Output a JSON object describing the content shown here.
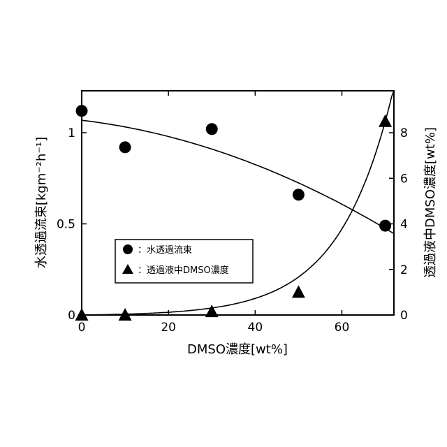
{
  "chart_data": {
    "type": "scatter",
    "title": "",
    "xlabel": "DMSO濃度[wt%]",
    "ylabel_left": "水透過流束[kgm⁻²h⁻¹]",
    "ylabel_right": "透過液中DMSO濃度[wt%]",
    "xlim": [
      0,
      72
    ],
    "ylim_left": [
      0,
      1.23
    ],
    "ylim_right": [
      0,
      9.84
    ],
    "x_ticks": [
      0,
      20,
      40,
      60
    ],
    "y_left_ticks": [
      0,
      0.5,
      1
    ],
    "y_right_ticks": [
      0,
      2,
      4,
      6,
      8
    ],
    "x_tick_labels": [
      "0",
      "20",
      "40",
      "60"
    ],
    "y_left_tick_labels": [
      "0",
      "0.5",
      "1"
    ],
    "y_right_tick_labels": [
      "0",
      "2",
      "4",
      "6",
      "8"
    ],
    "grid": false,
    "legend_position": "middle-left",
    "series": [
      {
        "name": "：水透過流束",
        "axis": "left",
        "marker": "circle",
        "x": [
          0,
          10,
          30,
          50,
          70
        ],
        "y": [
          1.12,
          0.92,
          1.02,
          0.66,
          0.49
        ]
      },
      {
        "name": "：透過液中DMSO濃度",
        "axis": "right",
        "marker": "triangle",
        "x": [
          0,
          10,
          30,
          50,
          70
        ],
        "y": [
          0.0,
          0.0,
          0.15,
          1.0,
          8.5
        ]
      }
    ]
  }
}
